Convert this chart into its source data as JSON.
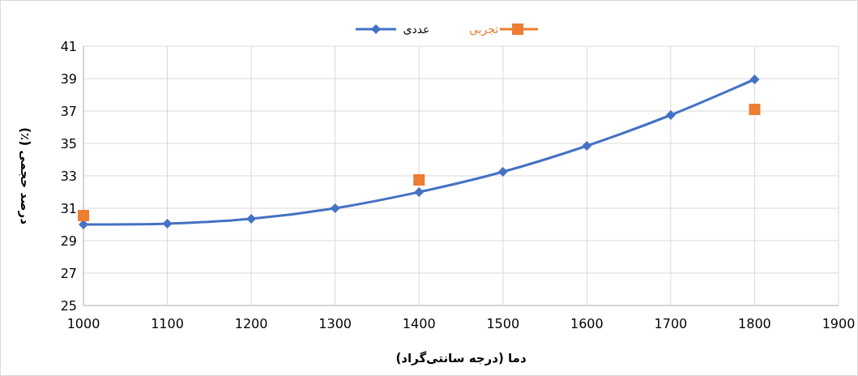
{
  "chart_data": {
    "type": "line",
    "xlabel": "دما (درجه سانتی‌گراد)",
    "ylabel": "درصد حجمی (٪)",
    "xlim": [
      1000,
      1900
    ],
    "xticks": [
      1000,
      1100,
      1200,
      1300,
      1400,
      1500,
      1600,
      1700,
      1800,
      1900
    ],
    "ylim": [
      25,
      41
    ],
    "yticks": [
      25,
      27,
      29,
      31,
      33,
      35,
      37,
      39,
      41
    ],
    "grid": true,
    "legend": "top",
    "series": [
      {
        "name": "عددی",
        "color": "#4472c4",
        "marker": "diamond",
        "x": [
          1000,
          1100,
          1200,
          1300,
          1400,
          1500,
          1600,
          1700,
          1800
        ],
        "values": [
          30.0,
          30.05,
          30.35,
          31.0,
          32.0,
          33.25,
          34.85,
          36.75,
          38.95
        ]
      },
      {
        "name": "تجربی",
        "type": "scatter",
        "color": "#ed7d31",
        "marker": "square",
        "x": [
          1000,
          1400,
          1800
        ],
        "values": [
          30.55,
          32.75,
          37.1
        ]
      }
    ]
  }
}
